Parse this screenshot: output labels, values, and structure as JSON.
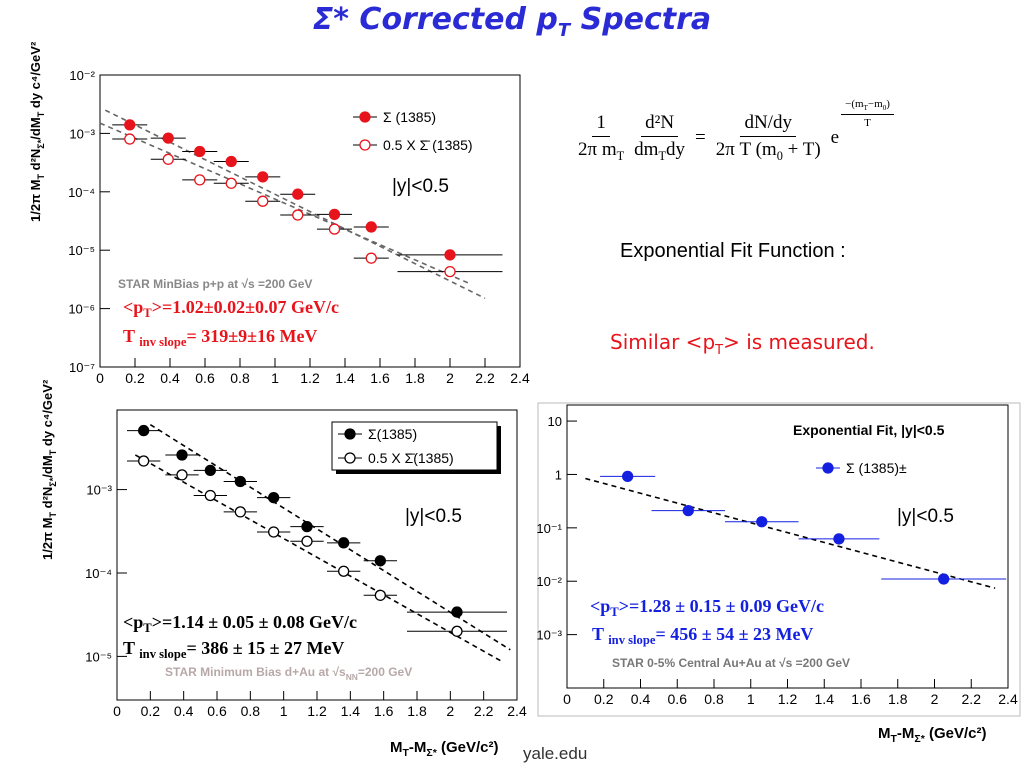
{
  "title": [
    "Σ* Corrected p",
    "T",
    " Spectra"
  ],
  "formula": {
    "f1_num": "1",
    "f1_den": [
      "2π m",
      "T"
    ],
    "f2_num": "d²N",
    "f2_den": [
      "dm",
      "T",
      "dy"
    ],
    "eq": "=",
    "f3_num": "dN/dy",
    "f3_den": [
      "2π T (m",
      "0",
      " + T)"
    ],
    "base": "e",
    "exp_num": [
      "−(m",
      "T",
      "−m",
      "0",
      ")"
    ],
    "exp_den": "T"
  },
  "fit_function_label": "Exponential Fit Function :",
  "conclusion": [
    "Similar <p",
    "T",
    "> is measured."
  ],
  "footer": "yale.edu",
  "chart_data": [
    {
      "type": "scatter",
      "log_y": true,
      "xlim": [
        0,
        2.4
      ],
      "ylim": [
        1e-07,
        0.01
      ],
      "xticks": [
        0,
        0.2,
        0.4,
        0.6,
        0.8,
        1,
        1.2,
        1.4,
        1.6,
        1.8,
        2,
        2.2,
        2.4
      ],
      "yticks": [
        {
          "value": 0.01,
          "label": "10⁻²"
        },
        {
          "value": 0.001,
          "label": "10⁻³"
        },
        {
          "value": 0.0001,
          "label": "10⁻⁴"
        },
        {
          "value": 1e-05,
          "label": "10⁻⁵"
        },
        {
          "value": 1e-06,
          "label": "10⁻⁶"
        },
        {
          "value": 1e-07,
          "label": "10⁻⁷"
        }
      ],
      "ylabel": [
        "1/2π M",
        "T",
        "  d²N",
        "Σ*",
        "/dM",
        "T",
        " dy  c⁴/GeV²"
      ],
      "series": [
        {
          "name": "Σ (1385)",
          "color": "#e8141c",
          "marker": "filled",
          "x": [
            0.17,
            0.39,
            0.57,
            0.75,
            0.93,
            1.13,
            1.34,
            1.55,
            2.0
          ],
          "values": [
            0.0014,
            0.00083,
            0.00049,
            0.00033,
            0.00018,
            9.1e-05,
            4.1e-05,
            2.5e-05,
            8.3e-06
          ],
          "xerr": [
            0.1,
            0.1,
            0.1,
            0.1,
            0.1,
            0.1,
            0.1,
            0.1,
            0.3
          ]
        },
        {
          "name": "0.5 X Σ̄ (1385)",
          "color": "#e8141c",
          "marker": "open",
          "x": [
            0.17,
            0.39,
            0.57,
            0.75,
            0.93,
            1.13,
            1.34,
            1.55,
            2.0
          ],
          "values": [
            0.0008,
            0.00036,
            0.00016,
            0.00014,
            6.9e-05,
            4e-05,
            2.3e-05,
            7.3e-06,
            4.3e-06
          ],
          "xerr": [
            0.1,
            0.1,
            0.1,
            0.1,
            0.1,
            0.1,
            0.1,
            0.1,
            0.3
          ]
        }
      ],
      "fit_color": "#666666",
      "fits": [
        {
          "x": [
            0.03,
            2.2
          ],
          "values": [
            0.0025,
            1.5e-06
          ]
        },
        {
          "x": [
            0,
            2.11
          ],
          "values": [
            0.0015,
            2.7e-06
          ]
        }
      ],
      "annotations": [
        {
          "text": "|y|<0.5",
          "color": "#000000"
        },
        {
          "text": "STAR MinBias p+p at √s =200 GeV",
          "color": "#888888"
        },
        {
          "text": [
            "<p",
            "T",
            ">=1.02±0.02±0.07 GeV/c"
          ],
          "color": "#e8141c"
        },
        {
          "text": [
            "T ",
            "inv slope",
            "= 319±9±16 MeV"
          ],
          "color": "#e8141c"
        }
      ]
    },
    {
      "type": "scatter",
      "log_y": true,
      "xlim": [
        0,
        2.4
      ],
      "ylim": [
        3e-06,
        0.009
      ],
      "xticks": [
        0,
        0.2,
        0.4,
        0.6,
        0.8,
        1,
        1.2,
        1.4,
        1.6,
        1.8,
        2,
        2.2,
        2.4
      ],
      "yticks": [
        {
          "value": 0.001,
          "label": "10⁻³"
        },
        {
          "value": 0.0001,
          "label": "10⁻⁴"
        },
        {
          "value": 1e-05,
          "label": "10⁻⁵"
        }
      ],
      "ylabel": [
        "1/2π M",
        "T",
        "  d²N",
        "Σ*",
        "/dM",
        "T",
        " dy  c⁴/GeV²"
      ],
      "xlabel": [
        "M",
        "T",
        "-M",
        "Σ*",
        " (GeV/c²)"
      ],
      "series": [
        {
          "name": "Σ(1385)",
          "color": "#000000",
          "marker": "filled",
          "x": [
            0.16,
            0.39,
            0.56,
            0.74,
            0.94,
            1.14,
            1.36,
            1.58,
            2.04
          ],
          "values": [
            0.0051,
            0.0026,
            0.0017,
            0.00125,
            0.0008,
            0.00036,
            0.00023,
            0.00014,
            3.4e-05
          ],
          "xerr": [
            0.1,
            0.1,
            0.1,
            0.1,
            0.1,
            0.1,
            0.1,
            0.1,
            0.3
          ]
        },
        {
          "name": "0.5 X Σ̄(1385)",
          "color": "#000000",
          "marker": "open",
          "x": [
            0.16,
            0.39,
            0.56,
            0.74,
            0.94,
            1.14,
            1.36,
            1.58,
            2.04
          ],
          "values": [
            0.0022,
            0.0015,
            0.00085,
            0.00054,
            0.00031,
            0.00024,
            0.000105,
            5.4e-05,
            2e-05
          ],
          "xerr": [
            0.1,
            0.1,
            0.1,
            0.1,
            0.1,
            0.1,
            0.1,
            0.1,
            0.3
          ]
        }
      ],
      "fit_color": "#000000",
      "fits": [
        {
          "x": [
            0.2,
            2.36
          ],
          "values": [
            0.006,
            1.2e-05
          ]
        },
        {
          "x": [
            0.11,
            2.3
          ],
          "values": [
            0.0026,
            8.9e-06
          ]
        }
      ],
      "annotations": [
        {
          "text": "|y|<0.5",
          "color": "#000000"
        },
        {
          "text": [
            "<p",
            "T",
            ">=1.14 ± 0.05 ± 0.08 GeV/c"
          ],
          "color": "#000000"
        },
        {
          "text": [
            "T ",
            "inv slope",
            "= 386 ± 15 ± 27 MeV"
          ],
          "color": "#000000"
        },
        {
          "text": [
            "STAR Minimum Bias d+Au at √s",
            "NN",
            "=200 GeV"
          ],
          "color": "#b8a8a8"
        }
      ]
    },
    {
      "type": "scatter",
      "log_y": true,
      "xlim": [
        0,
        2.4
      ],
      "ylim": [
        0.0001,
        20
      ],
      "xticks": [
        0,
        0.2,
        0.4,
        0.6,
        0.8,
        1,
        1.2,
        1.4,
        1.6,
        1.8,
        2,
        2.2,
        2.4
      ],
      "yticks": [
        10,
        1,
        {
          "value": 0.1,
          "label": "10⁻¹"
        },
        {
          "value": 0.01,
          "label": "10⁻²"
        },
        {
          "value": 0.001,
          "label": "10⁻³"
        }
      ],
      "xlabel": [
        "M",
        "T",
        "-M",
        "Σ*",
        " (GeV/c²)"
      ],
      "series": [
        {
          "name": "Σ (1385)±",
          "color": "#1420e0",
          "marker": "filled",
          "x": [
            0.33,
            0.66,
            1.06,
            1.48,
            2.05
          ],
          "values": [
            0.92,
            0.21,
            0.13,
            0.062,
            0.011
          ],
          "xerr": [
            0.15,
            0.2,
            0.2,
            0.22,
            0.34
          ]
        }
      ],
      "fit_color": "#000000",
      "fits": [
        {
          "x": [
            0.1,
            2.33
          ],
          "values": [
            0.84,
            0.0074
          ]
        }
      ],
      "annotations": [
        {
          "text": "Exponential Fit, |y|<0.5",
          "color": "#000000"
        },
        {
          "text": "|y|<0.5",
          "color": "#000000"
        },
        {
          "text": [
            "<p",
            "T",
            ">=1.28 ± 0.15 ± 0.09 GeV/c"
          ],
          "color": "#1420e0"
        },
        {
          "text": [
            "T ",
            "inv slope",
            "= 456 ± 54 ± 23 MeV"
          ],
          "color": "#1420e0"
        },
        {
          "text": "STAR 0-5% Central Au+Au at √s =200 GeV",
          "color": "#777777"
        }
      ]
    }
  ]
}
